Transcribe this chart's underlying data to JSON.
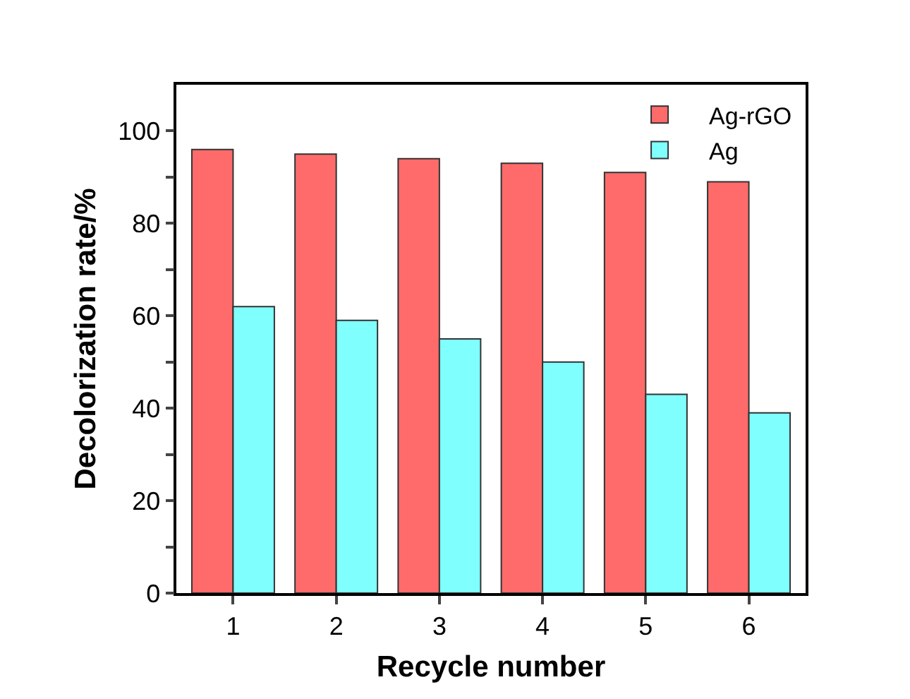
{
  "chart_data": {
    "type": "bar",
    "xlabel": "Recycle number",
    "ylabel": "Decolorization rate/%",
    "categories": [
      "1",
      "2",
      "3",
      "4",
      "5",
      "6"
    ],
    "series": [
      {
        "name": "Ag-rGO",
        "color": "#ff6b6b",
        "values": [
          96,
          95,
          94,
          93,
          91,
          89
        ]
      },
      {
        "name": "Ag",
        "color": "#80ffff",
        "values": [
          62,
          59,
          55,
          50,
          43,
          39
        ]
      }
    ],
    "ylim": [
      0,
      110
    ],
    "yticks": [
      0,
      {
        "value": 10,
        "label": null
      },
      20,
      {
        "value": 30,
        "label": null
      },
      40,
      {
        "value": 50,
        "label": null
      },
      60,
      {
        "value": 70,
        "label": null
      },
      80,
      {
        "value": 90,
        "label": null
      },
      100
    ],
    "grid": false,
    "legend": "top right"
  }
}
